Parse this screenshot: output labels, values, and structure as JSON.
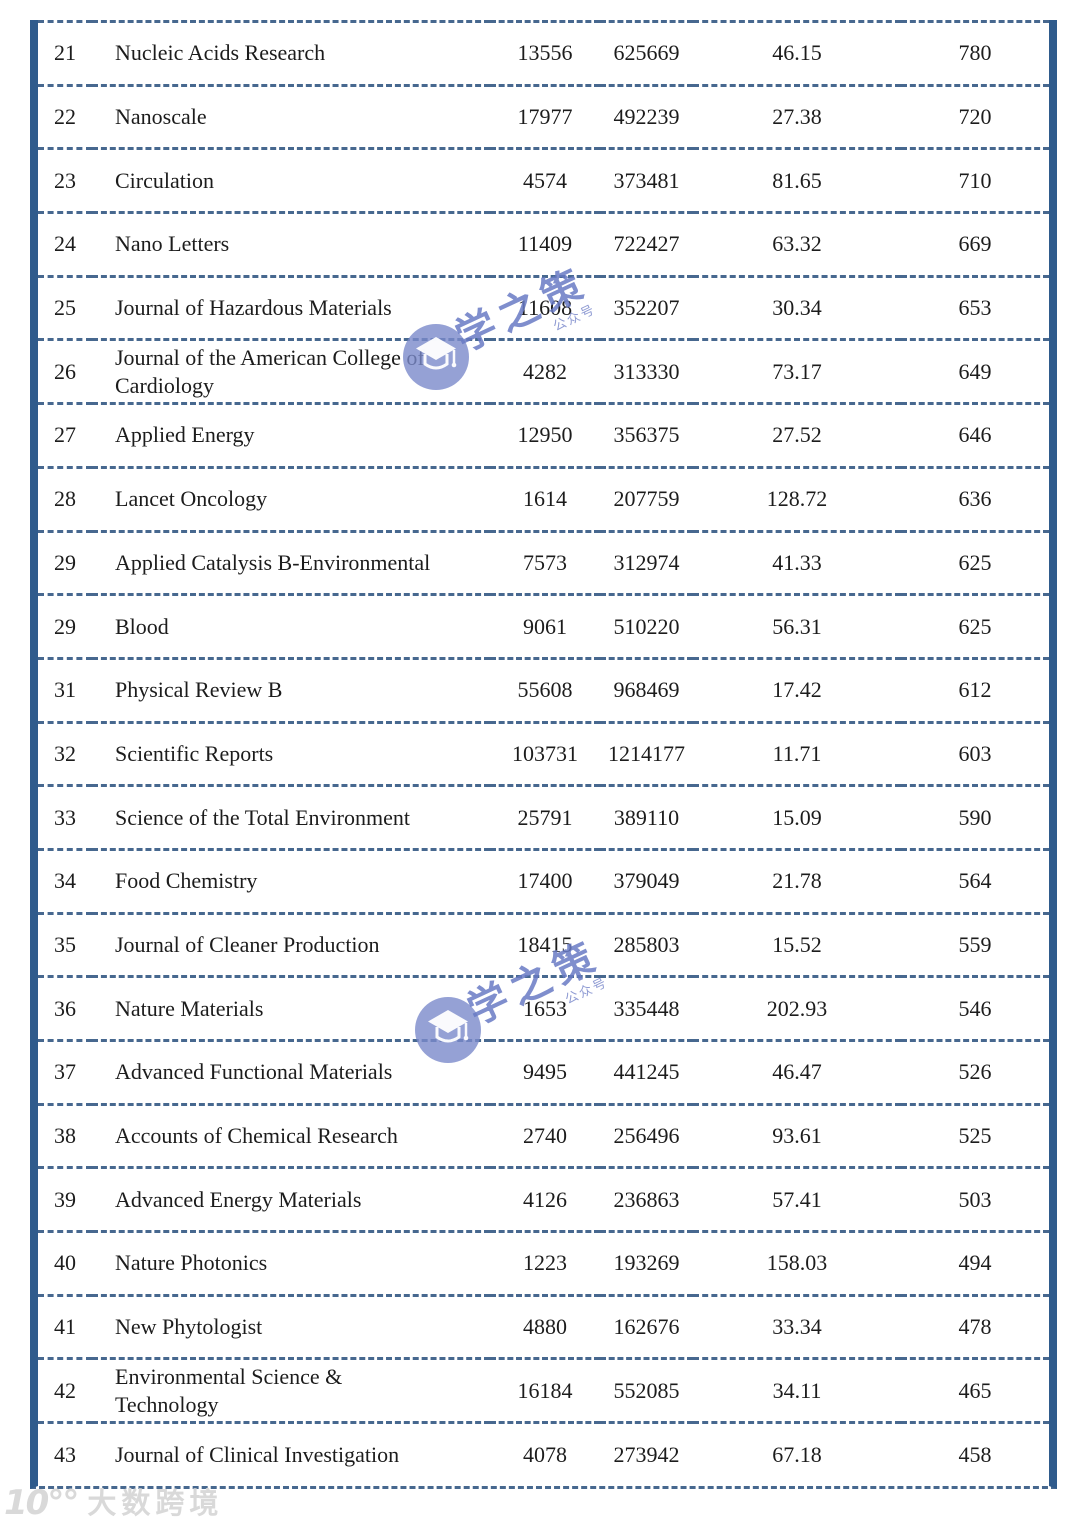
{
  "colors": {
    "table_border": "#2f5b8c",
    "table_dash": "#47688f",
    "text": "#1c1c1c",
    "watermark_blue": "#697ac4",
    "footer_gray": "#d9d9d9"
  },
  "table": {
    "rows": [
      {
        "rank": "21",
        "name": "Nucleic Acids Research",
        "metrics": [
          "13556",
          "625669",
          "46.15",
          "780"
        ]
      },
      {
        "rank": "22",
        "name": "Nanoscale",
        "metrics": [
          "17977",
          "492239",
          "27.38",
          "720"
        ]
      },
      {
        "rank": "23",
        "name": "Circulation",
        "metrics": [
          "4574",
          "373481",
          "81.65",
          "710"
        ]
      },
      {
        "rank": "24",
        "name": "Nano Letters",
        "metrics": [
          "11409",
          "722427",
          "63.32",
          "669"
        ]
      },
      {
        "rank": "25",
        "name": "Journal of Hazardous Materials",
        "metrics": [
          "11608",
          "352207",
          "30.34",
          "653"
        ]
      },
      {
        "rank": "26",
        "name": "Journal of the American College of\nCardiology",
        "metrics": [
          "4282",
          "313330",
          "73.17",
          "649"
        ]
      },
      {
        "rank": "27",
        "name": "Applied Energy",
        "metrics": [
          "12950",
          "356375",
          "27.52",
          "646"
        ]
      },
      {
        "rank": "28",
        "name": "Lancet Oncology",
        "metrics": [
          "1614",
          "207759",
          "128.72",
          "636"
        ]
      },
      {
        "rank": "29",
        "name": "Applied Catalysis B-Environmental",
        "metrics": [
          "7573",
          "312974",
          "41.33",
          "625"
        ]
      },
      {
        "rank": "29",
        "name": "Blood",
        "metrics": [
          "9061",
          "510220",
          "56.31",
          "625"
        ]
      },
      {
        "rank": "31",
        "name": "Physical Review B",
        "metrics": [
          "55608",
          "968469",
          "17.42",
          "612"
        ]
      },
      {
        "rank": "32",
        "name": "Scientific Reports",
        "metrics": [
          "103731",
          "1214177",
          "11.71",
          "603"
        ]
      },
      {
        "rank": "33",
        "name": "Science of the Total Environment",
        "metrics": [
          "25791",
          "389110",
          "15.09",
          "590"
        ]
      },
      {
        "rank": "34",
        "name": "Food Chemistry",
        "metrics": [
          "17400",
          "379049",
          "21.78",
          "564"
        ]
      },
      {
        "rank": "35",
        "name": "Journal of Cleaner Production",
        "metrics": [
          "18415",
          "285803",
          "15.52",
          "559"
        ]
      },
      {
        "rank": "36",
        "name": "Nature Materials",
        "metrics": [
          "1653",
          "335448",
          "202.93",
          "546"
        ]
      },
      {
        "rank": "37",
        "name": "Advanced Functional Materials",
        "metrics": [
          "9495",
          "441245",
          "46.47",
          "526"
        ]
      },
      {
        "rank": "38",
        "name": "Accounts of Chemical Research",
        "metrics": [
          "2740",
          "256496",
          "93.61",
          "525"
        ]
      },
      {
        "rank": "39",
        "name": "Advanced Energy Materials",
        "metrics": [
          "4126",
          "236863",
          "57.41",
          "503"
        ]
      },
      {
        "rank": "40",
        "name": "Nature Photonics",
        "metrics": [
          "1223",
          "193269",
          "158.03",
          "494"
        ]
      },
      {
        "rank": "41",
        "name": "New Phytologist",
        "metrics": [
          "4880",
          "162676",
          "33.34",
          "478"
        ]
      },
      {
        "rank": "42",
        "name": "Environmental Science &\nTechnology",
        "metrics": [
          "16184",
          "552085",
          "34.11",
          "465"
        ]
      },
      {
        "rank": "43",
        "name": "Journal of Clinical Investigation",
        "metrics": [
          "4078",
          "273942",
          "67.18",
          "458"
        ]
      }
    ]
  },
  "watermark": {
    "brand_text": "学之策",
    "brand_subtext": "公众号"
  },
  "footer_watermark": {
    "logo_glyph": "10°°",
    "text": "大数跨境"
  }
}
